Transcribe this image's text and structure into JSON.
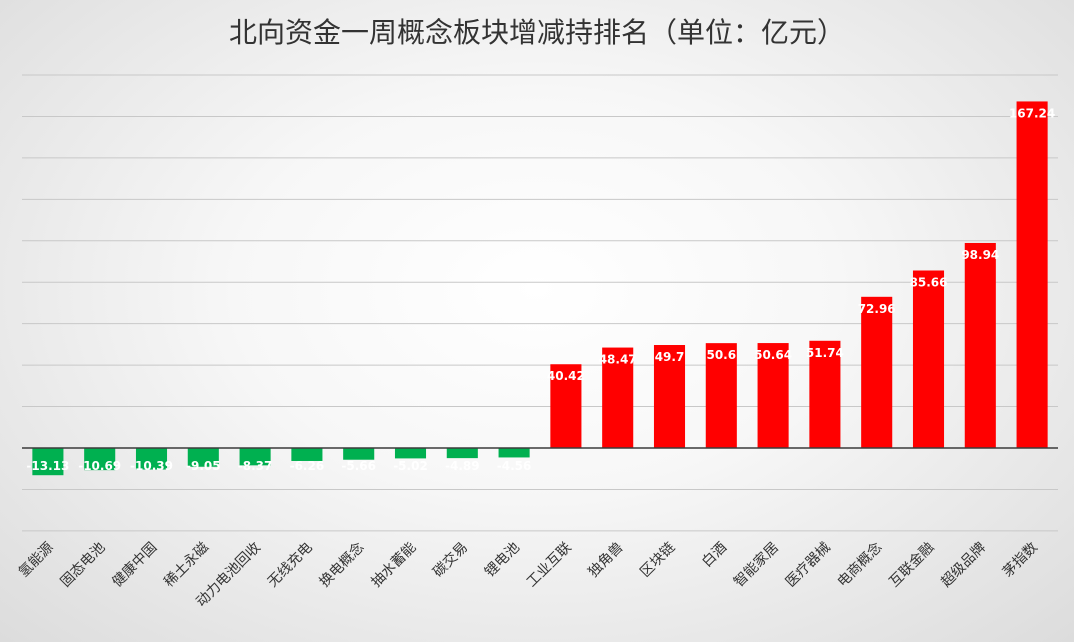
{
  "chart_data": {
    "type": "bar",
    "title": "北向资金一周概念板块增减持排名（单位：亿元）",
    "xlabel": "",
    "ylabel": "",
    "categories": [
      "氢能源",
      "固态电池",
      "健康中国",
      "稀土永磁",
      "动力电池回收",
      "无线充电",
      "换电概念",
      "抽水蓄能",
      "碳交易",
      "锂电池",
      "工业互联",
      "独角兽",
      "区块链",
      "白酒",
      "智能家居",
      "医疗器械",
      "电商概念",
      "互联金融",
      "超级品牌",
      "茅指数"
    ],
    "values": [
      -13.13,
      -10.69,
      -10.39,
      -9.05,
      -8.37,
      -6.26,
      -5.66,
      -5.02,
      -4.89,
      -4.56,
      40.42,
      48.47,
      49.7,
      50.6,
      50.64,
      51.74,
      72.96,
      85.66,
      98.94,
      167.24
    ],
    "value_labels": [
      "-13.13",
      "-10.69",
      "-10.39",
      "-9.05",
      "-8.37",
      "-6.26",
      "-5.66",
      "-5.02",
      "-4.89",
      "-4.56",
      "40.42",
      "48.47",
      "49.7",
      "50.6",
      "50.64",
      "51.74",
      "72.96",
      "85.66",
      "98.94",
      "167.24"
    ],
    "ylim": [
      -40,
      180
    ],
    "gridline_step": 20,
    "grid": true,
    "legend": "none",
    "colors": {
      "positive": "#ff0000",
      "negative": "#00b050"
    }
  }
}
